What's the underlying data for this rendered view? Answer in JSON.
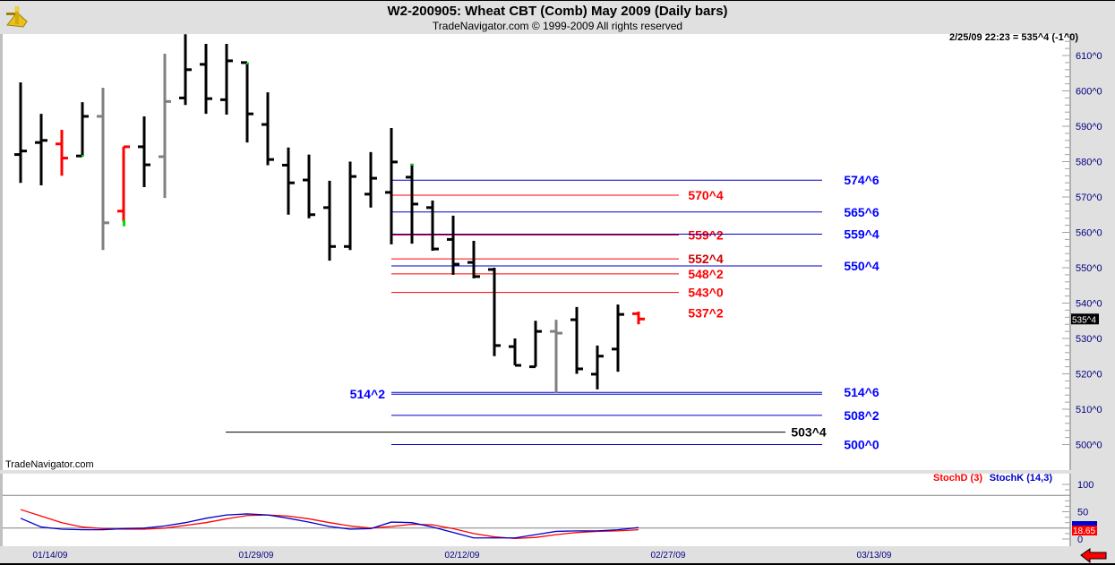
{
  "header": {
    "title": "W2-200905:  Wheat CBT (Comb) May 2009  (Daily bars)",
    "subtitle": "TradeNavigator.com © 1999-2009 All rights reserved",
    "last_quote": "2/25/09 22:23 = 535^4 (-1^0)",
    "watermark": "TradeNavigator.com",
    "logo": "sextant-logo"
  },
  "colors": {
    "up_bar": "#000000",
    "down_bar": "#ff0000",
    "neutral_bar": "#808080",
    "marker": "#00dd00",
    "axis_text": "#000080",
    "stoch_d": "#ff0000",
    "stoch_k": "#0000cc"
  },
  "chart_data": [
    {
      "type": "ohlc",
      "title": "W2-200905:  Wheat CBT (Comb) May 2009  (Daily bars)",
      "ylim": [
        497,
        617
      ],
      "yticks": [
        "610^0",
        "600^0",
        "590^0",
        "580^0",
        "570^0",
        "560^0",
        "550^0",
        "540^0",
        "530^0",
        "520^0",
        "510^0",
        "500^0"
      ],
      "ytick_values": [
        610,
        600,
        590,
        580,
        570,
        560,
        550,
        540,
        530,
        520,
        510,
        500
      ],
      "current_price_label": "535^4",
      "bars": [
        {
          "o": 582,
          "h": 602.4,
          "l": 574,
          "c": 583,
          "color": "black"
        },
        {
          "o": 585.4,
          "h": 593.5,
          "l": 573.3,
          "c": 586,
          "color": "black"
        },
        {
          "o": 585,
          "h": 589,
          "l": 576,
          "c": 581,
          "color": "red"
        },
        {
          "o": 581.6,
          "h": 596.8,
          "l": 581.4,
          "c": 592.8,
          "color": "black",
          "marker": "low"
        },
        {
          "o": 592.8,
          "h": 600.9,
          "l": 555,
          "c": 562.7,
          "color": "gray"
        },
        {
          "o": 566,
          "h": 584.2,
          "l": 563,
          "c": 584.2,
          "color": "red",
          "marker": "low"
        },
        {
          "o": 584.2,
          "h": 592.8,
          "l": 572.8,
          "c": 579.1,
          "color": "black"
        },
        {
          "o": 581.4,
          "h": 610.5,
          "l": 569.7,
          "c": 597,
          "color": "gray"
        },
        {
          "o": 598,
          "h": 616,
          "l": 596,
          "c": 606,
          "color": "black"
        },
        {
          "o": 607.5,
          "h": 613.3,
          "l": 593.5,
          "c": 597.8,
          "color": "black"
        },
        {
          "o": 597.5,
          "h": 613.3,
          "l": 593.3,
          "c": 608.5,
          "color": "black"
        },
        {
          "o": 608,
          "h": 608,
          "l": 585.4,
          "c": 593.5,
          "color": "black",
          "marker": "high"
        },
        {
          "o": 590.5,
          "h": 599.6,
          "l": 579,
          "c": 580.6,
          "color": "black"
        },
        {
          "o": 579,
          "h": 584,
          "l": 565,
          "c": 574,
          "color": "black"
        },
        {
          "o": 574.8,
          "h": 582,
          "l": 564,
          "c": 565,
          "color": "black"
        },
        {
          "o": 567,
          "h": 574.6,
          "l": 552,
          "c": 556,
          "color": "black"
        },
        {
          "o": 556,
          "h": 580,
          "l": 555,
          "c": 575.8,
          "color": "black"
        },
        {
          "o": 570.8,
          "h": 582.7,
          "l": 567,
          "c": 575.3,
          "color": "black"
        },
        {
          "o": 571.3,
          "h": 589.5,
          "l": 556.6,
          "c": 579.9,
          "color": "black"
        },
        {
          "o": 575.6,
          "h": 579.4,
          "l": 556.8,
          "c": 568,
          "color": "black",
          "marker": "high"
        },
        {
          "o": 567,
          "h": 569,
          "l": 554.8,
          "c": 555.3,
          "color": "black"
        },
        {
          "o": 558,
          "h": 564.7,
          "l": 548,
          "c": 551,
          "color": "black"
        },
        {
          "o": 551.5,
          "h": 557.6,
          "l": 547,
          "c": 547.5,
          "color": "black"
        },
        {
          "o": 549.5,
          "h": 550,
          "l": 525,
          "c": 528,
          "color": "black"
        },
        {
          "o": 527.7,
          "h": 530,
          "l": 522.4,
          "c": 522.4,
          "color": "black"
        },
        {
          "o": 522,
          "h": 535,
          "l": 522,
          "c": 532,
          "color": "black"
        },
        {
          "o": 532,
          "h": 535.3,
          "l": 514.6,
          "c": 531.5,
          "color": "gray"
        },
        {
          "o": 535.3,
          "h": 538.9,
          "l": 520,
          "c": 521.4,
          "color": "black"
        },
        {
          "o": 519.9,
          "h": 528,
          "l": 515.6,
          "c": 525,
          "color": "black"
        },
        {
          "o": 527,
          "h": 539.6,
          "l": 520.6,
          "c": 536.8,
          "color": "black"
        },
        {
          "o": 537,
          "h": 537.6,
          "l": 534,
          "c": 535.5,
          "color": "red"
        }
      ],
      "levels": [
        {
          "label": "574^6",
          "price": 574.75,
          "label_color": "#0000ff",
          "line_color": "#0000cc"
        },
        {
          "label": "570^4",
          "price": 570.5,
          "label_color": "#ff0000",
          "line_color": "#ff0000"
        },
        {
          "label": "565^6",
          "price": 565.75,
          "label_color": "#0000ff",
          "line_color": "#0000cc"
        },
        {
          "label": "559^2",
          "price": 559.25,
          "label_color": "#ff0000",
          "line_color": "#ff0000"
        },
        {
          "label": "559^4",
          "price": 559.5,
          "label_color": "#0000ff",
          "line_color": "#0000cc"
        },
        {
          "label": "552^4",
          "price": 552.5,
          "label_color": "#cc0000",
          "line_color": "#ff0000"
        },
        {
          "label": "550^4",
          "price": 550.5,
          "label_color": "#0000ff",
          "line_color": "#0000cc"
        },
        {
          "label": "548^2",
          "price": 548.25,
          "label_color": "#ff0000",
          "line_color": "#ff0000"
        },
        {
          "label": "543^0",
          "price": 543,
          "label_color": "#ff0000",
          "line_color": "#ff0000"
        },
        {
          "label": "537^2",
          "price": 537.25,
          "label_color": "#ff0000",
          "line_color": ""
        },
        {
          "label": "514^2",
          "price": 514.25,
          "label_color": "#0000ff",
          "line_color": "#0000cc"
        },
        {
          "label": "514^6",
          "price": 514.75,
          "label_color": "#0000ff",
          "line_color": "#0000cc"
        },
        {
          "label": "508^2",
          "price": 508.25,
          "label_color": "#0000ff",
          "line_color": "#0000cc"
        },
        {
          "label": "503^4",
          "price": 503.5,
          "label_color": "#000000",
          "line_color": "#000000"
        },
        {
          "label": "500^0",
          "price": 500,
          "label_color": "#0000ff",
          "line_color": "#0000cc"
        }
      ],
      "xticks": [
        "01/14/09",
        "01/29/09",
        "02/12/09",
        "02/27/09",
        "03/13/09"
      ]
    },
    {
      "type": "line",
      "ylim": [
        0,
        100
      ],
      "yticks": [
        "100",
        "50",
        "0"
      ],
      "ytick_values": [
        100,
        50,
        0
      ],
      "gridlines": [
        80,
        20
      ],
      "current_value_label": "18.65",
      "series": [
        {
          "name": "StochD (3)",
          "color": "#ff0000",
          "values": [
            54,
            42,
            30,
            22,
            19,
            18,
            18,
            20,
            25,
            30,
            37,
            43,
            44,
            42,
            37,
            30,
            24,
            20,
            23,
            27,
            26,
            19,
            10,
            4,
            1,
            3,
            8,
            12,
            14,
            15,
            17
          ]
        },
        {
          "name": "StochK (14,3)",
          "color": "#0000cc",
          "values": [
            38,
            22,
            18,
            17,
            17,
            19,
            20,
            24,
            30,
            38,
            44,
            46,
            44,
            38,
            31,
            23,
            18,
            19,
            31,
            30,
            22,
            12,
            2,
            2,
            2,
            8,
            14,
            15,
            15,
            17,
            21
          ]
        }
      ]
    }
  ]
}
